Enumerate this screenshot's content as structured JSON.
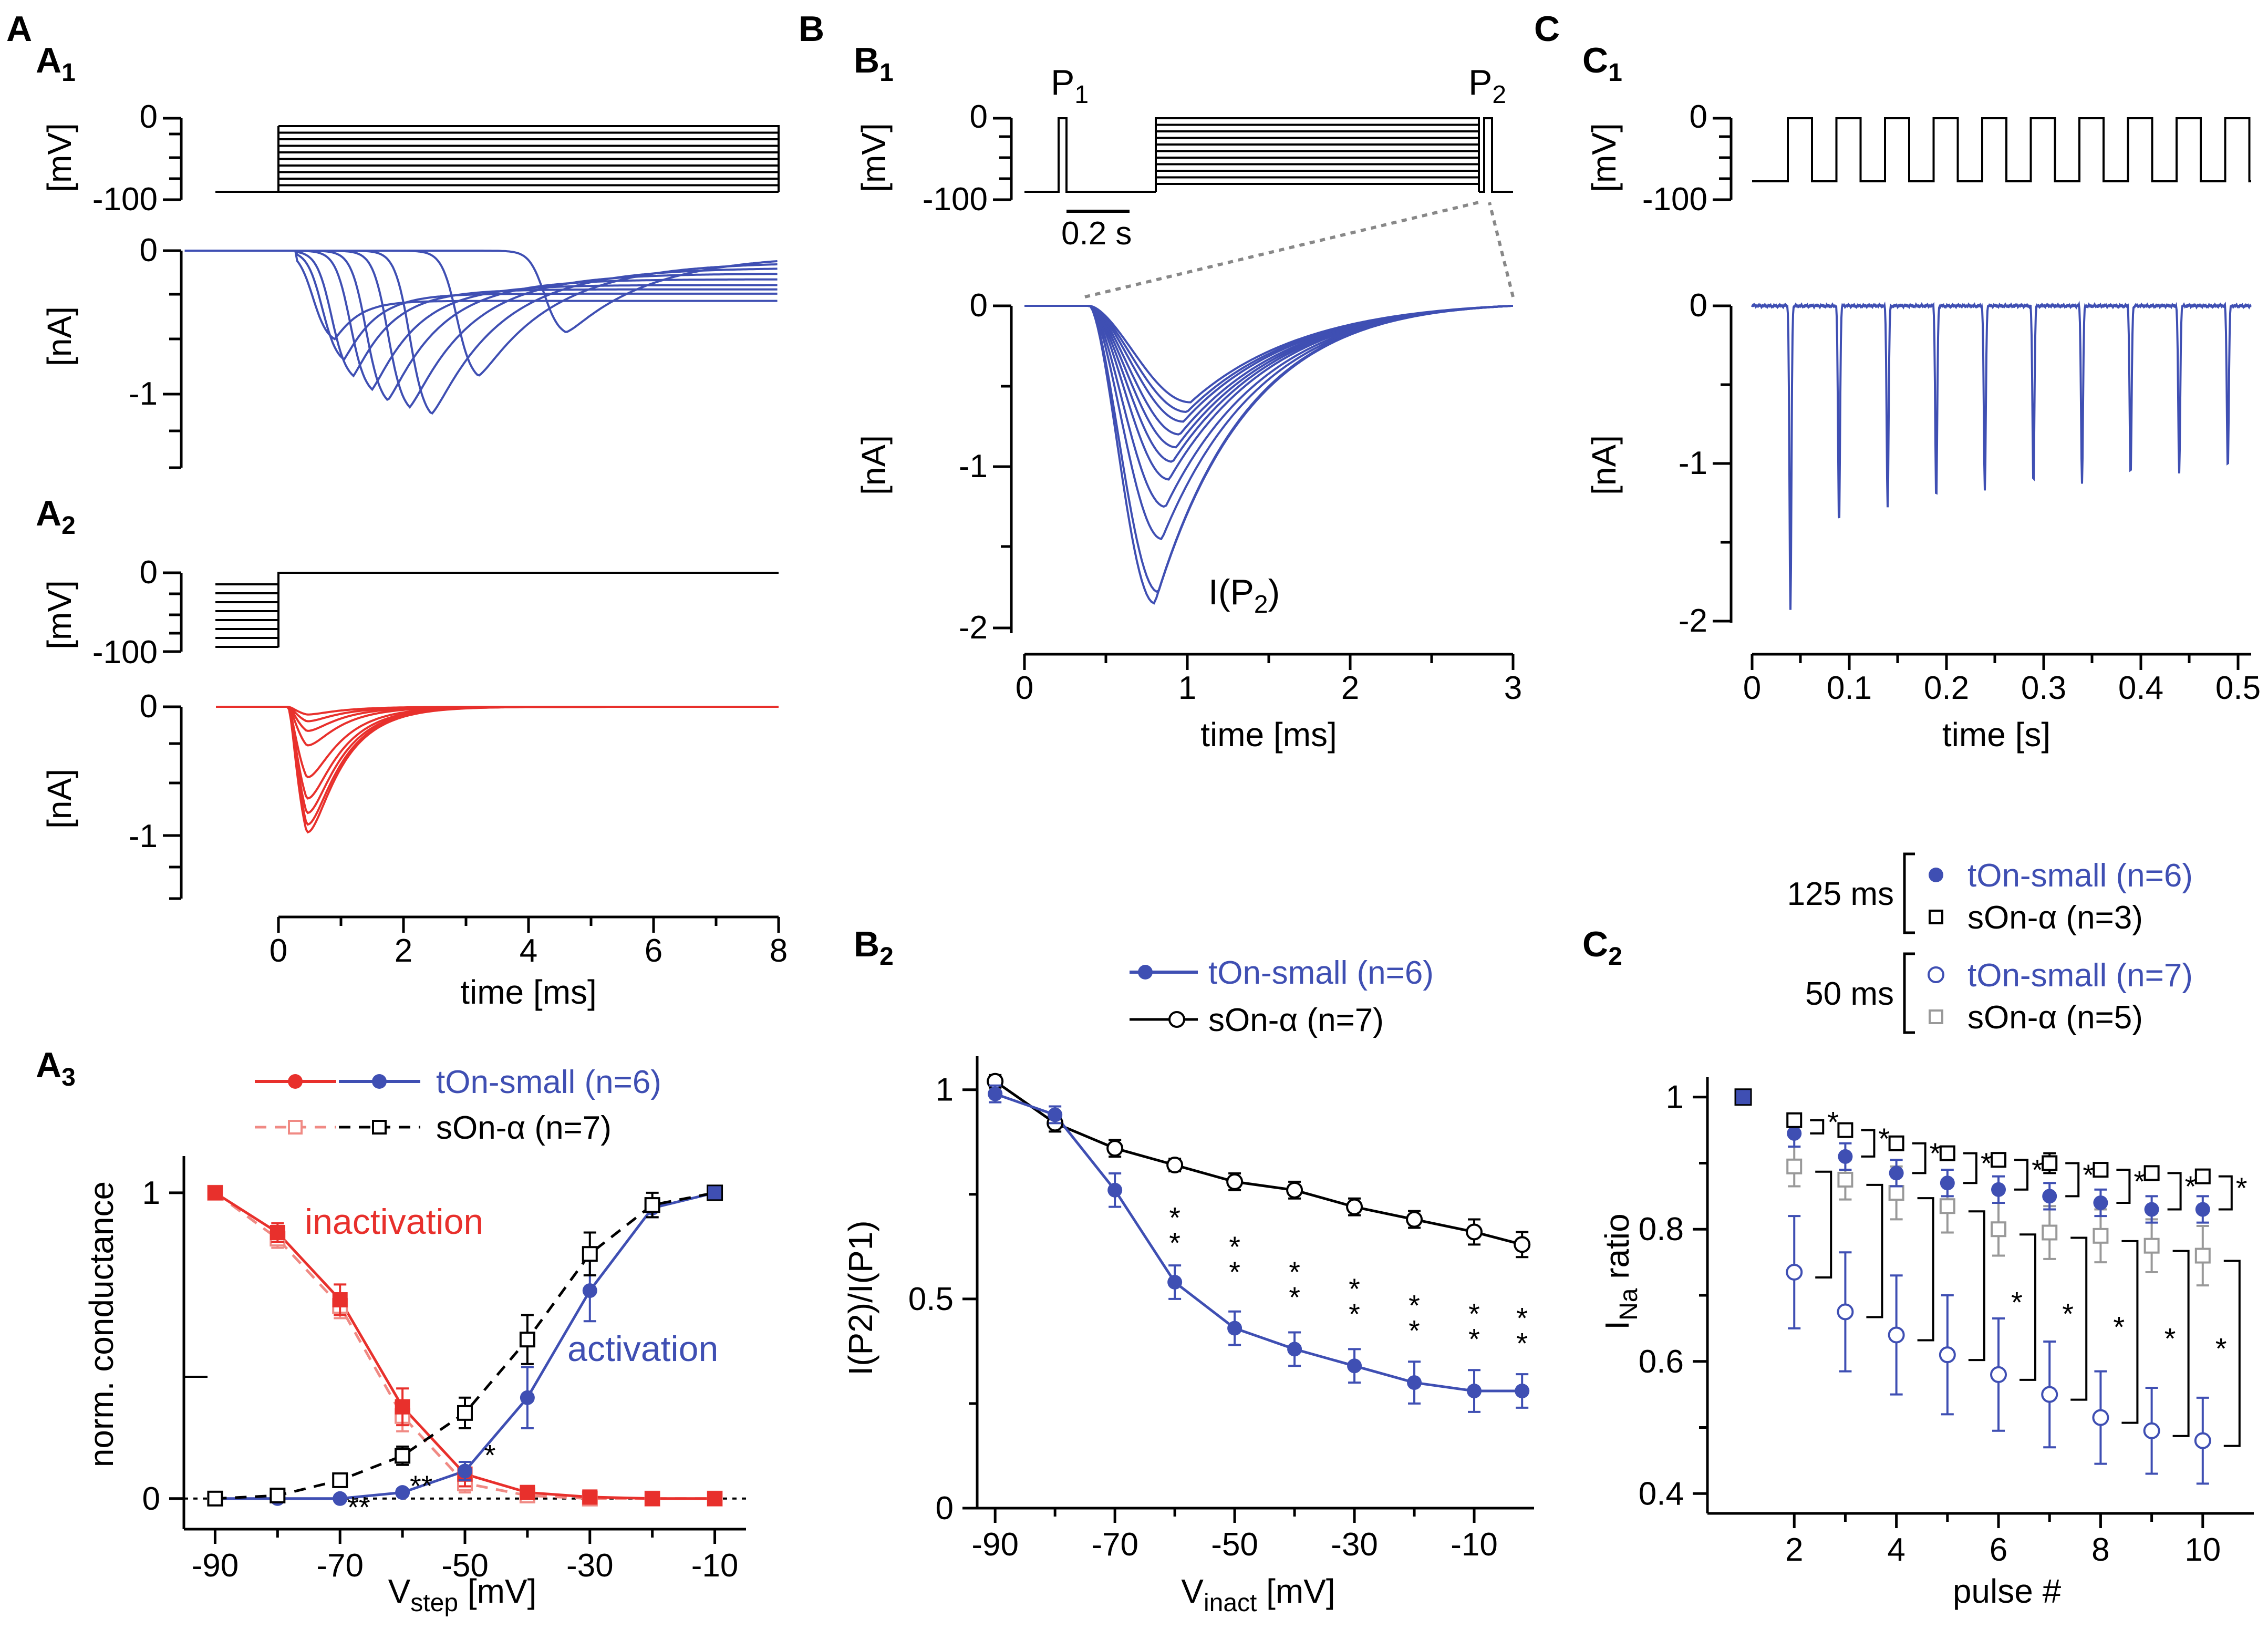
{
  "colors": {
    "blue": "#3f4fb3",
    "red": "#e8302c",
    "pink": "#f08a84",
    "black": "#000000",
    "gray": "#999999",
    "grayText": "#666666"
  },
  "panels": {
    "A": "A",
    "A1": "A",
    "A1sub": "1",
    "A2": "A",
    "A2sub": "2",
    "A3": "A",
    "A3sub": "3",
    "B": "B",
    "B1": "B",
    "B1sub": "1",
    "B2": "B",
    "B2sub": "2",
    "C": "C",
    "C1": "C",
    "C1sub": "1",
    "C2": "C",
    "C2sub": "2"
  },
  "units": {
    "mV": "[mV]",
    "nA": "[nA]",
    "time_ms": "time [ms]",
    "time_s": "time [s]"
  },
  "ticks": {
    "mv": [
      "0",
      "-100"
    ],
    "a1_na": [
      "0",
      "-1"
    ],
    "a2_na": [
      "0",
      "-1"
    ],
    "a_time": [
      "0",
      "2",
      "4",
      "6",
      "8"
    ],
    "b1_na": [
      "0",
      "-1",
      "-2"
    ],
    "b1_time": [
      "0",
      "1",
      "2",
      "3"
    ],
    "c1_na": [
      "0",
      "-1",
      "-2"
    ],
    "c1_time": [
      "0",
      "0.1",
      "0.2",
      "0.3",
      "0.4",
      "0.5"
    ]
  },
  "b1_annotations": {
    "p1": "P",
    "p1sub": "1",
    "p2": "P",
    "p2sub": "2",
    "scale": "0.2 s",
    "ip2_pre": "I(P",
    "ip2_sub": "2",
    "ip2_post": ")"
  },
  "chart_data": [
    {
      "id": "A3",
      "type": "line",
      "xlabel_main": "V",
      "xlabel_sub": "step",
      "xlabel_unit": " [mV]",
      "ylabel": "norm. conductance",
      "xlim": [
        -95,
        -5
      ],
      "ylim": [
        -0.1,
        1.12
      ],
      "xticks": [
        "-90",
        "-70",
        "-50",
        "-30",
        "-10"
      ],
      "yticks": [
        "0",
        "1"
      ],
      "x": [
        -90,
        -80,
        -70,
        -60,
        -50,
        -40,
        -30,
        -20,
        -10
      ],
      "series": [
        {
          "name": "tOn-small inactivation",
          "values": [
            1.0,
            0.87,
            0.65,
            0.3,
            0.08,
            0.02,
            0.005,
            0.0,
            0.0
          ],
          "errors": [
            0.02,
            0.03,
            0.05,
            0.06,
            0.04,
            0.01,
            0.005,
            0.005,
            0.005
          ]
        },
        {
          "name": "sOn-α inactivation",
          "values": [
            1.0,
            0.85,
            0.63,
            0.27,
            0.05,
            0.01,
            0.0,
            0.0,
            0.0
          ],
          "errors": [
            0.02,
            0.03,
            0.04,
            0.05,
            0.03,
            0.01,
            0.005,
            0.005,
            0.005
          ]
        },
        {
          "name": "tOn-small activation",
          "values": [
            0.0,
            0.0,
            0.0,
            0.02,
            0.09,
            0.33,
            0.68,
            0.95,
            1.0
          ],
          "errors": [
            0.005,
            0.005,
            0.005,
            0.01,
            0.03,
            0.1,
            0.1,
            0.03,
            0.0
          ]
        },
        {
          "name": "sOn-α activation",
          "values": [
            0.0,
            0.01,
            0.06,
            0.14,
            0.28,
            0.52,
            0.8,
            0.96,
            1.0
          ],
          "errors": [
            0.005,
            0.005,
            0.02,
            0.03,
            0.05,
            0.08,
            0.07,
            0.04,
            0.0
          ]
        }
      ],
      "legend": {
        "tOn": "tOn-small (n=6)",
        "sOn": "sOn-α (n=7)"
      },
      "annotations": {
        "inactivation": "inactivation",
        "activation": "activation"
      },
      "stars": [
        {
          "label": "**",
          "x": -67,
          "y": -0.01
        },
        {
          "label": "**",
          "x": -57,
          "y": 0.06
        },
        {
          "label": "*",
          "x": -46,
          "y": 0.16
        }
      ]
    },
    {
      "id": "B2",
      "type": "line",
      "xlabel_main": "V",
      "xlabel_sub": "inact",
      "xlabel_unit": " [mV]",
      "ylabel": "I(P2)/I(P1)",
      "xlim": [
        -93,
        0
      ],
      "ylim": [
        0,
        1.08
      ],
      "xticks": [
        "-90",
        "-70",
        "-50",
        "-30",
        "-10"
      ],
      "yticks": [
        "0",
        "0.5",
        "1"
      ],
      "x": [
        -90,
        -80,
        -70,
        -60,
        -50,
        -40,
        -30,
        -20,
        -10,
        -2
      ],
      "series": [
        {
          "name": "tOn-small (n=6)",
          "values": [
            0.99,
            0.94,
            0.76,
            0.54,
            0.43,
            0.38,
            0.34,
            0.3,
            0.28,
            0.28
          ],
          "errors": [
            0.02,
            0.02,
            0.04,
            0.04,
            0.04,
            0.04,
            0.04,
            0.05,
            0.05,
            0.04
          ]
        },
        {
          "name": "sOn-α (n=7)",
          "values": [
            1.02,
            0.92,
            0.86,
            0.82,
            0.78,
            0.76,
            0.72,
            0.69,
            0.66,
            0.63
          ],
          "errors": [
            0.015,
            0.02,
            0.02,
            0.015,
            0.02,
            0.02,
            0.02,
            0.02,
            0.03,
            0.03
          ]
        }
      ],
      "star_label": "**",
      "star_x": [
        -60,
        -50,
        -40,
        -30,
        -20,
        -10,
        -2
      ],
      "star_y": [
        0.67,
        0.6,
        0.54,
        0.5,
        0.46,
        0.44,
        0.43
      ]
    },
    {
      "id": "C2",
      "type": "line",
      "xlabel": "pulse #",
      "ylabel_main": "I",
      "ylabel_sub": "Na",
      "ylabel_unit": " ratio",
      "xlim": [
        0.3,
        11
      ],
      "ylim": [
        0.37,
        1.03
      ],
      "xticks": [
        "2",
        "4",
        "6",
        "8",
        "10"
      ],
      "yticks": [
        "0.4",
        "0.6",
        "0.8",
        "1"
      ],
      "x": [
        1,
        2,
        3,
        4,
        5,
        6,
        7,
        8,
        9,
        10
      ],
      "series": [
        {
          "name": "125 ms tOn-small (n=6)",
          "values": [
            1.0,
            0.945,
            0.91,
            0.885,
            0.87,
            0.86,
            0.85,
            0.84,
            0.83,
            0.83
          ],
          "errors": [
            0,
            0.02,
            0.02,
            0.02,
            0.02,
            0.02,
            0.02,
            0.02,
            0.02,
            0.02
          ]
        },
        {
          "name": "125 ms sOn-α (n=3)",
          "values": [
            1.0,
            0.965,
            0.95,
            0.93,
            0.915,
            0.905,
            0.9,
            0.89,
            0.885,
            0.88
          ],
          "errors": [
            0,
            0.01,
            0.01,
            0.01,
            0.01,
            0.01,
            0.015,
            0.01,
            0.01,
            0.01
          ]
        },
        {
          "name": "50 ms tOn-small (n=7)",
          "values": [
            1.0,
            0.735,
            0.675,
            0.64,
            0.61,
            0.58,
            0.55,
            0.515,
            0.495,
            0.48
          ],
          "errors": [
            0,
            0.085,
            0.09,
            0.09,
            0.09,
            0.085,
            0.08,
            0.07,
            0.065,
            0.065
          ]
        },
        {
          "name": "50 ms sOn-α (n=5)",
          "values": [
            1.0,
            0.895,
            0.875,
            0.855,
            0.835,
            0.8,
            0.795,
            0.79,
            0.775,
            0.76
          ],
          "errors": [
            0,
            0.03,
            0.03,
            0.04,
            0.04,
            0.04,
            0.04,
            0.04,
            0.04,
            0.045
          ]
        }
      ],
      "legend": {
        "g125": "125 ms",
        "g50": "50 ms",
        "t6": "tOn-small (n=6)",
        "s3": "sOn-α (n=3)",
        "t7": "tOn-small (n=7)",
        "s5": "sOn-α (n=5)"
      },
      "star_label": "*"
    }
  ]
}
